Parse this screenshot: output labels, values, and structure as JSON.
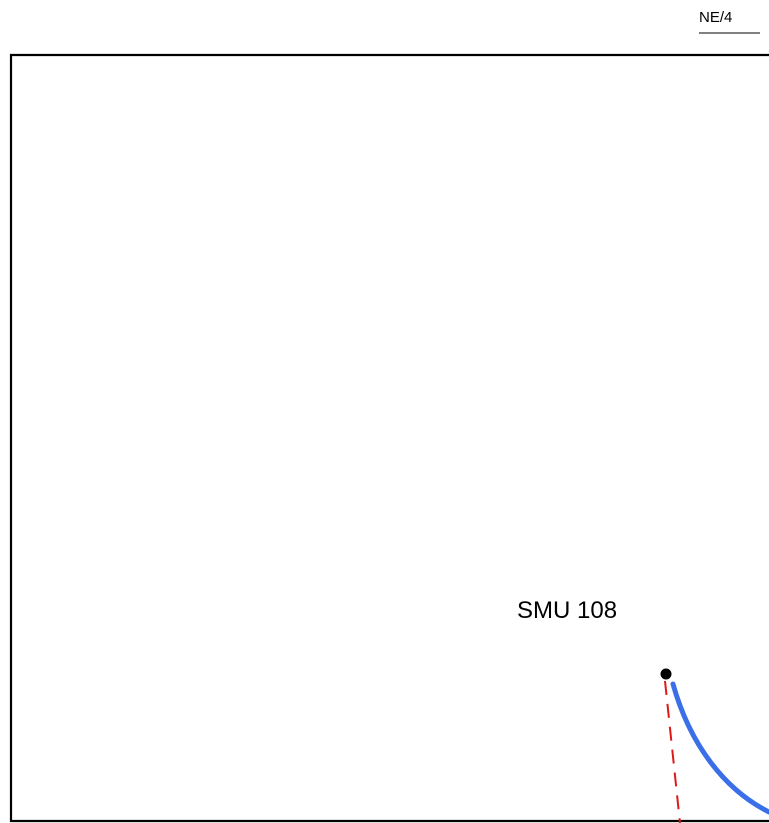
{
  "sheet": {
    "label": "NE/4"
  },
  "station": {
    "label": "SMU 108"
  },
  "colors": {
    "border": "#000000",
    "route": "#3a6fe8",
    "dashed_line": "#e01818",
    "station_marker": "#000000"
  }
}
